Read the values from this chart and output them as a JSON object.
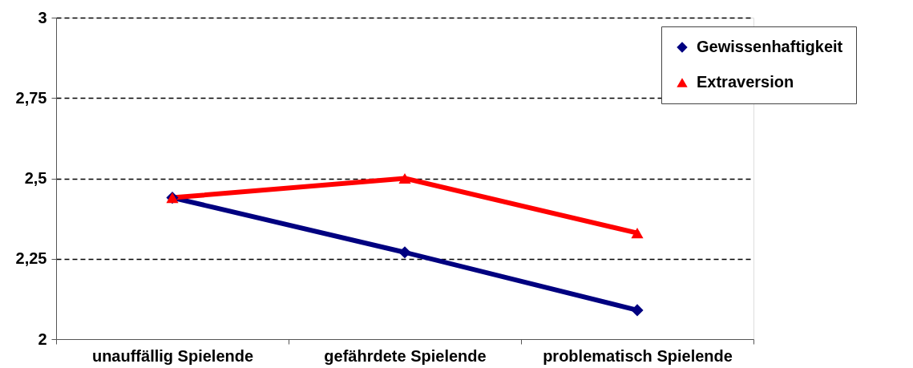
{
  "chart_data": {
    "type": "line",
    "categories": [
      "unauffällig Spielende",
      "gefährdete Spielende",
      "problematisch Spielende"
    ],
    "series": [
      {
        "name": "Gewissenhaftigkeit",
        "color": "#000080",
        "marker": "diamond",
        "values": [
          2.44,
          2.27,
          2.09
        ]
      },
      {
        "name": "Extraversion",
        "color": "#ff0000",
        "marker": "triangle",
        "values": [
          2.44,
          2.5,
          2.33
        ]
      }
    ],
    "ylim": [
      2,
      3
    ],
    "yticks": [
      2,
      {
        "value": 2.25,
        "label": "2,25"
      },
      {
        "value": 2.5,
        "label": "2,5"
      },
      {
        "value": 2.75,
        "label": "2,75"
      },
      3
    ],
    "grid": "y",
    "legend": "top right",
    "line_style": "solid"
  }
}
